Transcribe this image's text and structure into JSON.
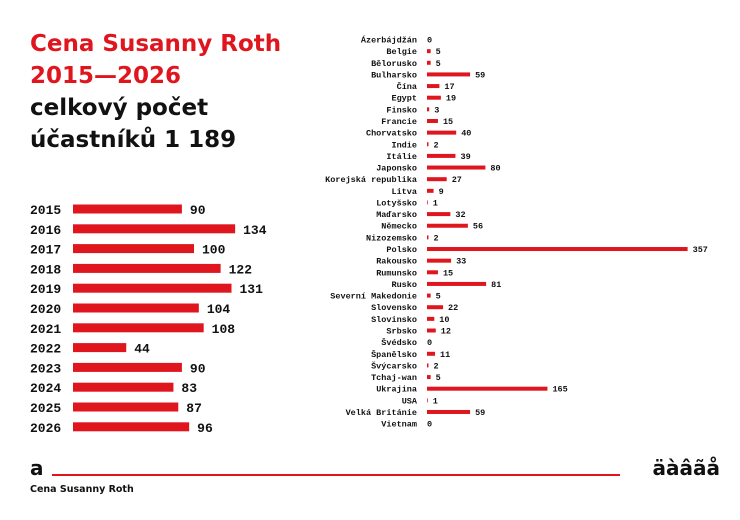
{
  "title": {
    "red": "Cena Susanny Roth 2015—2026",
    "black": "celkový počet účastníků 1 189"
  },
  "colors": {
    "bar": "#e0161e",
    "text": "#111111"
  },
  "footer": {
    "glyph_left": "a",
    "glyph_right": "äàâãå",
    "brand": "Cena Susanny Roth"
  },
  "chart_data": [
    {
      "type": "bar",
      "orientation": "horizontal",
      "categories": [
        "2015",
        "2016",
        "2017",
        "2018",
        "2019",
        "2020",
        "2021",
        "2022",
        "2023",
        "2024",
        "2025",
        "2026"
      ],
      "values": [
        90,
        134,
        100,
        122,
        131,
        104,
        108,
        44,
        90,
        83,
        87,
        96
      ]
    },
    {
      "type": "bar",
      "orientation": "horizontal",
      "categories": [
        "Ázerbájdžán",
        "Belgie",
        "Bělorusko",
        "Bulharsko",
        "Čína",
        "Egypt",
        "Finsko",
        "Francie",
        "Chorvatsko",
        "Indie",
        "Itálie",
        "Japonsko",
        "Korejská republika",
        "Litva",
        "Lotyšsko",
        "Maďarsko",
        "Německo",
        "Nizozemsko",
        "Polsko",
        "Rakousko",
        "Rumunsko",
        "Rusko",
        "Severní Makedonie",
        "Slovensko",
        "Slovinsko",
        "Srbsko",
        "Švédsko",
        "Španělsko",
        "Švýcarsko",
        "Tchaj-wan",
        "Ukrajina",
        "USA",
        "Velká Británie",
        "Vietnam"
      ],
      "values": [
        0,
        5,
        5,
        59,
        17,
        19,
        3,
        15,
        40,
        2,
        39,
        80,
        27,
        9,
        1,
        32,
        56,
        2,
        357,
        33,
        15,
        81,
        5,
        22,
        10,
        12,
        0,
        11,
        2,
        5,
        165,
        1,
        59,
        0
      ]
    }
  ]
}
